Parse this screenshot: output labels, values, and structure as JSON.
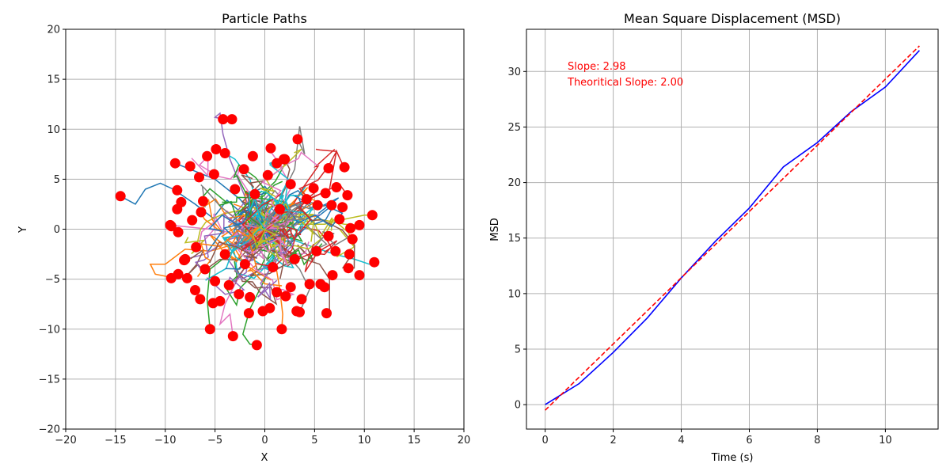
{
  "colors": {
    "endpoint": "#ff0000",
    "msd_line": "#0000ff",
    "fit_line": "#ff0000",
    "grid": "#b0b0b0",
    "palette": [
      "#1f77b4",
      "#ff7f0e",
      "#2ca02c",
      "#d62728",
      "#9467bd",
      "#8c564b",
      "#e377c2",
      "#7f7f7f",
      "#bcbd22",
      "#17becf"
    ]
  },
  "chart_data": [
    {
      "type": "line",
      "title": "Particle Paths",
      "xlabel": "X",
      "ylabel": "Y",
      "xlim": [
        -20,
        20
      ],
      "ylim": [
        -20,
        20
      ],
      "xticks": [
        -20,
        -15,
        -10,
        -5,
        0,
        5,
        10,
        15,
        20
      ],
      "yticks": [
        -20,
        -15,
        -10,
        -5,
        0,
        5,
        10,
        15,
        20
      ],
      "x_tick_labels": [
        "−20",
        "−15",
        "−10",
        "−5",
        "0",
        "5",
        "10",
        "15",
        "20"
      ],
      "y_tick_labels": [
        "−20",
        "−15",
        "−10",
        "−5",
        "0",
        "5",
        "10",
        "15",
        "20"
      ],
      "grid": true,
      "series_note_paths": [
        [
          [
            0,
            0
          ],
          [
            -2.1,
            1.4
          ],
          [
            -3.8,
            2.9
          ],
          [
            -5.2,
            1.1
          ],
          [
            -7.0,
            2.5
          ],
          [
            -9.2,
            4.0
          ],
          [
            -10.5,
            4.6
          ],
          [
            -12.0,
            4.0
          ],
          [
            -13.0,
            2.5
          ],
          [
            -14.5,
            3.3
          ]
        ],
        [
          [
            0,
            0
          ],
          [
            -3.0,
            -1.5
          ],
          [
            -5.5,
            -2.2
          ],
          [
            -8.0,
            -2.0
          ],
          [
            -10.0,
            -3.5
          ],
          [
            -11.5,
            -3.5
          ],
          [
            -11.0,
            -4.5
          ],
          [
            -9.5,
            -4.8
          ],
          [
            -9.0,
            -4.6
          ],
          [
            -9.4,
            -4.9
          ]
        ],
        [
          [
            0,
            0
          ],
          [
            1.5,
            -2.0
          ],
          [
            0.5,
            -4.0
          ],
          [
            -0.5,
            -6.0
          ],
          [
            -1.5,
            -8.0
          ],
          [
            -2.2,
            -10.5
          ],
          [
            -1.5,
            -11.5
          ],
          [
            -0.8,
            -11.6
          ]
        ],
        [
          [
            0,
            0
          ],
          [
            2.5,
            1.5
          ],
          [
            4.5,
            3.0
          ],
          [
            6.5,
            4.0
          ],
          [
            7.2,
            7.8
          ],
          [
            7.8,
            6.5
          ],
          [
            8.0,
            6.2
          ]
        ],
        [
          [
            0,
            0
          ],
          [
            -1.5,
            2.0
          ],
          [
            -2.5,
            4.5
          ],
          [
            -3.5,
            7.0
          ],
          [
            -4.2,
            9.5
          ],
          [
            -4.5,
            11.6
          ],
          [
            -5.0,
            11.2
          ],
          [
            -4.2,
            11.0
          ]
        ],
        [
          [
            0,
            0
          ],
          [
            2.0,
            -2.0
          ],
          [
            4.0,
            -3.0
          ],
          [
            5.5,
            -3.5
          ],
          [
            6.5,
            -5.0
          ],
          [
            6.5,
            -8.3
          ],
          [
            6.2,
            -8.4
          ]
        ],
        [
          [
            0,
            0
          ],
          [
            -1.5,
            -3.0
          ],
          [
            -3.0,
            -5.5
          ],
          [
            -4.0,
            -7.5
          ],
          [
            -4.5,
            -9.5
          ],
          [
            -3.5,
            -8.5
          ],
          [
            -3.2,
            -10.7
          ]
        ],
        [
          [
            0,
            0
          ],
          [
            1.5,
            3.0
          ],
          [
            3.0,
            6.0
          ],
          [
            3.5,
            10.3
          ],
          [
            4.0,
            7.5
          ],
          [
            3.3,
            9.0
          ]
        ],
        [
          [
            0,
            0
          ],
          [
            3.0,
            0.5
          ],
          [
            6.0,
            0.5
          ],
          [
            8.0,
            1.0
          ],
          [
            10.0,
            1.4
          ],
          [
            10.8,
            1.4
          ]
        ],
        [
          [
            0,
            0
          ],
          [
            4.0,
            -1.5
          ],
          [
            7.0,
            -2.5
          ],
          [
            9.0,
            -3.0
          ],
          [
            10.5,
            -3.5
          ],
          [
            11.0,
            -3.3
          ]
        ],
        [
          [
            0,
            0
          ],
          [
            -2.5,
            3.0
          ],
          [
            -5.0,
            5.0
          ],
          [
            -7.5,
            6.0
          ],
          [
            -9.0,
            6.6
          ]
        ],
        [
          [
            0,
            0
          ],
          [
            1.0,
            -3.0
          ],
          [
            1.5,
            -6.0
          ],
          [
            1.8,
            -8.5
          ],
          [
            1.7,
            -10.0
          ]
        ],
        [
          [
            0,
            0
          ],
          [
            -3.0,
            -2.0
          ],
          [
            -5.5,
            -4.0
          ],
          [
            -5.8,
            -7.0
          ],
          [
            -5.5,
            -10.0
          ]
        ],
        [
          [
            0,
            0
          ],
          [
            3.0,
            2.5
          ],
          [
            5.5,
            3.5
          ],
          [
            7.5,
            4.5
          ],
          [
            8.3,
            3.4
          ]
        ],
        [
          [
            0,
            0
          ],
          [
            -3.5,
            -1.0
          ],
          [
            -6.0,
            -2.5
          ],
          [
            -8.0,
            -3.0
          ]
        ],
        [
          [
            0,
            0
          ],
          [
            2.0,
            4.0
          ],
          [
            2.5,
            6.0
          ],
          [
            2.0,
            7.0
          ]
        ],
        [
          [
            0,
            0
          ],
          [
            -2.5,
            -0.5
          ],
          [
            -5.5,
            0.0
          ],
          [
            -9.5,
            0.4
          ]
        ],
        [
          [
            0,
            0
          ],
          [
            3.5,
            -4.0
          ],
          [
            4.5,
            -6.0
          ],
          [
            3.5,
            -8.3
          ]
        ],
        [
          [
            0,
            0
          ],
          [
            5.5,
            1.0
          ],
          [
            8.0,
            0.5
          ],
          [
            9.5,
            0.4
          ]
        ],
        [
          [
            0,
            0
          ],
          [
            -1.5,
            5.0
          ],
          [
            -3.0,
            7.0
          ],
          [
            -4.0,
            7.6
          ]
        ]
      ],
      "endpoints": [
        [
          -14.5,
          3.3
        ],
        [
          -9.4,
          -4.9
        ],
        [
          -0.8,
          -11.6
        ],
        [
          8.0,
          6.2
        ],
        [
          -4.2,
          11.0
        ],
        [
          -3.3,
          11.0
        ],
        [
          6.2,
          -8.4
        ],
        [
          -3.2,
          -10.7
        ],
        [
          3.3,
          9.0
        ],
        [
          10.8,
          1.4
        ],
        [
          11.0,
          -3.3
        ],
        [
          -9.0,
          6.6
        ],
        [
          1.7,
          -10.0
        ],
        [
          -5.5,
          -10.0
        ],
        [
          8.3,
          3.4
        ],
        [
          -8.0,
          -3.0
        ],
        [
          2.0,
          7.0
        ],
        [
          -9.5,
          0.4
        ],
        [
          3.5,
          -8.3
        ],
        [
          9.5,
          0.4
        ],
        [
          -4.0,
          7.6
        ],
        [
          -7.5,
          6.3
        ],
        [
          -5.8,
          7.3
        ],
        [
          -4.9,
          8.0
        ],
        [
          0.6,
          8.1
        ],
        [
          -1.2,
          7.3
        ],
        [
          1.9,
          7.0
        ],
        [
          -8.8,
          3.9
        ],
        [
          -8.4,
          2.7
        ],
        [
          -6.6,
          5.2
        ],
        [
          -5.1,
          5.5
        ],
        [
          -2.1,
          6.0
        ],
        [
          0.3,
          5.4
        ],
        [
          1.2,
          6.6
        ],
        [
          4.9,
          4.1
        ],
        [
          6.4,
          6.1
        ],
        [
          7.2,
          4.2
        ],
        [
          7.8,
          2.2
        ],
        [
          6.1,
          3.6
        ],
        [
          5.3,
          2.4
        ],
        [
          -8.8,
          2.0
        ],
        [
          -7.3,
          0.9
        ],
        [
          -6.4,
          1.7
        ],
        [
          -8.7,
          -0.3
        ],
        [
          -9.4,
          0.3
        ],
        [
          -6.9,
          -1.8
        ],
        [
          -8.1,
          -3.1
        ],
        [
          -6.0,
          -4.0
        ],
        [
          -5.0,
          -5.2
        ],
        [
          -3.6,
          -5.6
        ],
        [
          -7.0,
          -6.1
        ],
        [
          -6.5,
          -7.0
        ],
        [
          -4.5,
          -7.2
        ],
        [
          -5.2,
          -7.4
        ],
        [
          -2.6,
          -6.5
        ],
        [
          -1.5,
          -6.8
        ],
        [
          -1.6,
          -8.4
        ],
        [
          -0.2,
          -8.2
        ],
        [
          0.5,
          -7.9
        ],
        [
          1.2,
          -6.3
        ],
        [
          2.1,
          -6.7
        ],
        [
          2.6,
          -5.8
        ],
        [
          3.7,
          -7.0
        ],
        [
          3.2,
          -8.2
        ],
        [
          4.5,
          -5.5
        ],
        [
          5.6,
          -5.5
        ],
        [
          6.0,
          -5.8
        ],
        [
          6.8,
          -4.6
        ],
        [
          7.1,
          -2.2
        ],
        [
          8.5,
          -2.5
        ],
        [
          8.4,
          -3.9
        ],
        [
          9.5,
          -4.6
        ],
        [
          8.8,
          -1.0
        ],
        [
          8.6,
          0.1
        ],
        [
          7.5,
          1.0
        ],
        [
          6.7,
          2.4
        ],
        [
          2.6,
          4.5
        ],
        [
          4.2,
          3.0
        ],
        [
          -3.0,
          4.0
        ],
        [
          -1.0,
          3.5
        ],
        [
          -2.0,
          -3.5
        ],
        [
          0.8,
          -3.8
        ],
        [
          3.0,
          -3.0
        ],
        [
          5.2,
          -2.2
        ],
        [
          -6.2,
          2.8
        ],
        [
          -4.0,
          -2.5
        ],
        [
          1.5,
          2.0
        ],
        [
          6.4,
          -0.7
        ],
        [
          -7.8,
          -4.9
        ],
        [
          -8.7,
          -4.5
        ]
      ]
    },
    {
      "type": "line",
      "title": "Mean Square Displacement (MSD)",
      "xlabel": "Time (s)",
      "ylabel": "MSD",
      "xlim": [
        -0.55,
        11.55
      ],
      "ylim": [
        -2.2,
        33.8
      ],
      "xticks": [
        0,
        2,
        4,
        6,
        8,
        10
      ],
      "yticks": [
        0,
        5,
        10,
        15,
        20,
        25,
        30
      ],
      "grid": true,
      "annotations": [
        "Slope: 2.98",
        "Theoritical Slope: 2.00"
      ],
      "series": [
        {
          "x": [
            0,
            1,
            2,
            3,
            4,
            5,
            6,
            7,
            8,
            9,
            10,
            11
          ],
          "values": [
            0.0,
            1.9,
            4.7,
            7.8,
            11.4,
            14.7,
            17.7,
            21.4,
            23.6,
            26.4,
            28.6,
            31.9
          ]
        },
        {
          "x": [
            0,
            11
          ],
          "values": [
            -0.5,
            32.3
          ],
          "style": "dashed"
        }
      ]
    }
  ]
}
